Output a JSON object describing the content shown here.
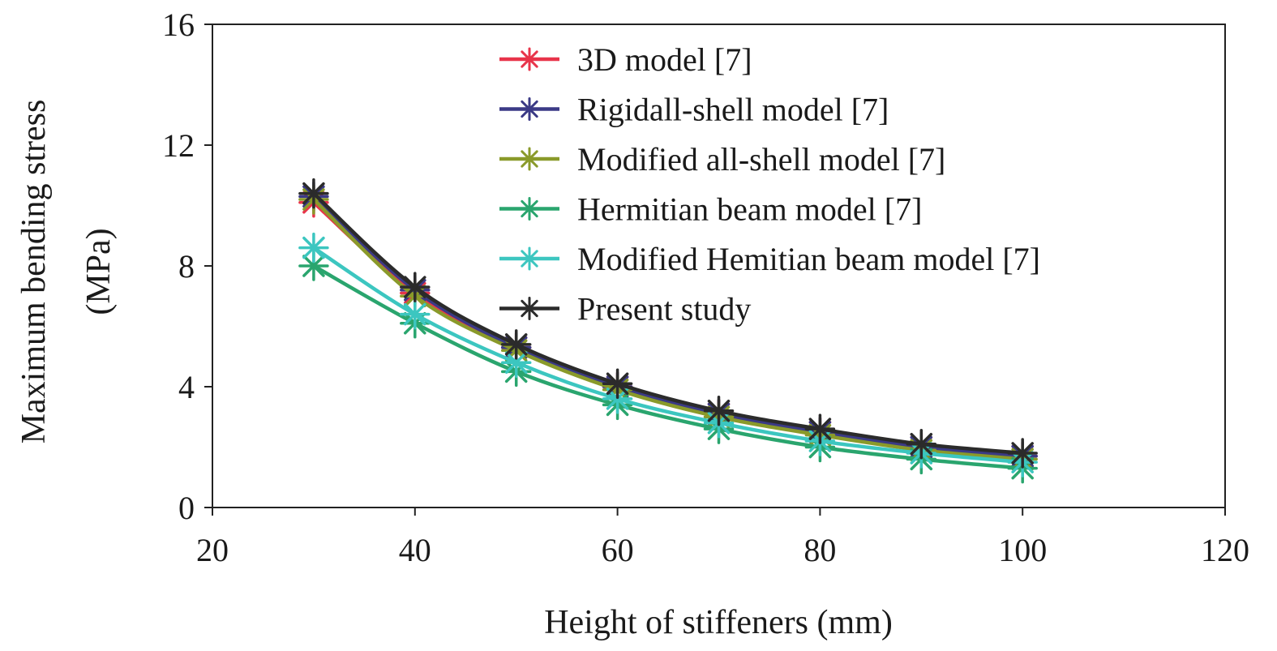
{
  "chart_data": {
    "type": "line",
    "title": "",
    "xlabel": "Height of stiffeners (mm)",
    "ylabel_lines": [
      "Maximum bending stress",
      "(MPa)"
    ],
    "xlim": [
      20,
      120
    ],
    "ylim": [
      0,
      16
    ],
    "xticks": [
      20,
      40,
      60,
      80,
      100,
      120
    ],
    "yticks": [
      0,
      4,
      8,
      12,
      16
    ],
    "xtick_labels": [
      "20",
      "40",
      "60",
      "80",
      "100",
      "120"
    ],
    "ytick_labels": [
      "0",
      "4",
      "8",
      "12",
      "16"
    ],
    "grid": false,
    "legend_position": "top-right",
    "x": [
      30,
      40,
      50,
      60,
      70,
      80,
      90,
      100
    ],
    "series": [
      {
        "name": "3D model [7]",
        "color": "#e8344a",
        "marker": "asterisk",
        "values": [
          10.1,
          7.1,
          5.3,
          4.0,
          3.1,
          2.5,
          2.0,
          1.7
        ]
      },
      {
        "name": "Rigidall-shell model [7]",
        "color": "#3b3a86",
        "marker": "asterisk",
        "values": [
          10.3,
          7.2,
          5.3,
          4.0,
          3.1,
          2.5,
          2.0,
          1.7
        ]
      },
      {
        "name": "Modified all-shell model [7]",
        "color": "#8a9a2a",
        "marker": "asterisk",
        "values": [
          10.2,
          7.0,
          5.2,
          3.9,
          3.0,
          2.4,
          1.9,
          1.6
        ]
      },
      {
        "name": "Hermitian beam model [7]",
        "color": "#2aa56e",
        "marker": "asterisk",
        "values": [
          8.0,
          6.1,
          4.5,
          3.4,
          2.6,
          2.0,
          1.6,
          1.3
        ]
      },
      {
        "name": "Modified Hemitian beam model [7]",
        "color": "#3cc6c0",
        "marker": "asterisk",
        "values": [
          8.6,
          6.4,
          4.8,
          3.6,
          2.8,
          2.2,
          1.8,
          1.5
        ]
      },
      {
        "name": "Present study",
        "color": "#2b2b2b",
        "marker": "asterisk",
        "values": [
          10.4,
          7.3,
          5.4,
          4.1,
          3.2,
          2.6,
          2.1,
          1.8
        ]
      }
    ]
  }
}
